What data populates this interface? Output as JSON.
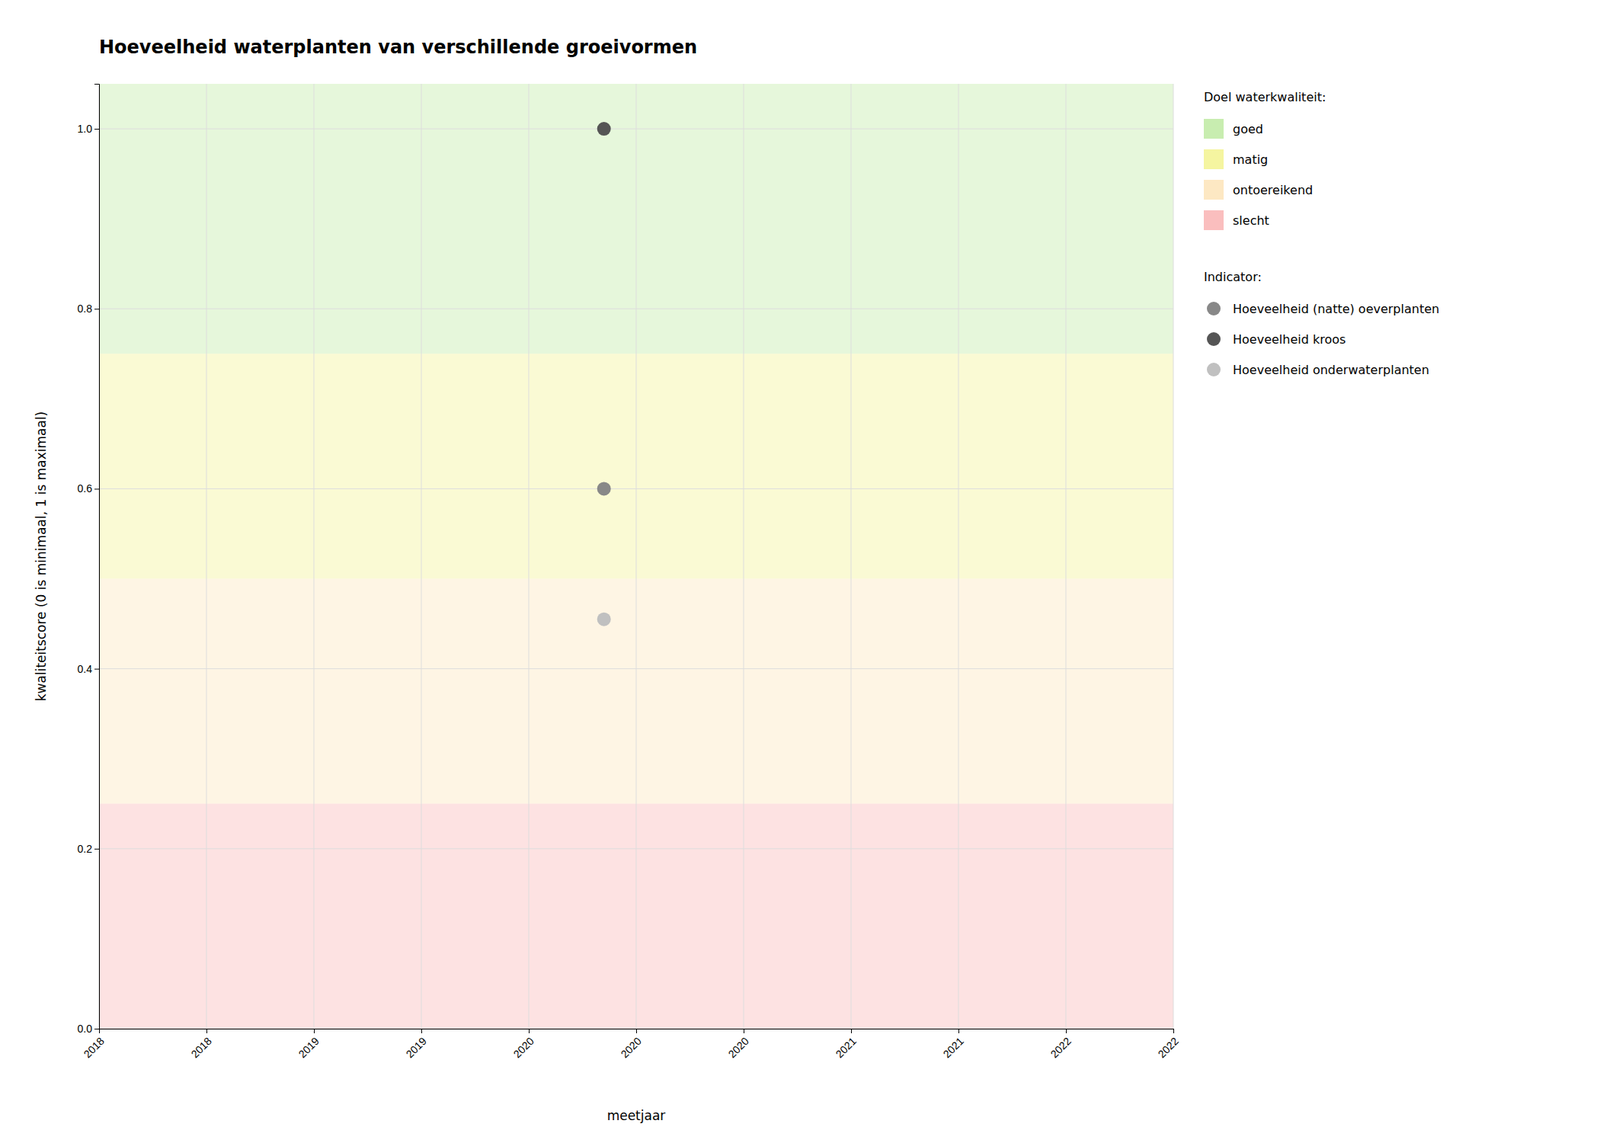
{
  "chart_data": {
    "type": "scatter",
    "title": "Hoeveelheid waterplanten van verschillende groeivormen",
    "x_label": "meetjaar",
    "y_label": "kwaliteitscore (0 is minimaal, 1 is maximaal)",
    "xlim": [
      2017.5,
      2022.5
    ],
    "ylim": [
      0.0,
      1.05
    ],
    "xticks": [
      {
        "value": 2017.5,
        "label": "2018"
      },
      {
        "value": 2018.0,
        "label": "2018"
      },
      {
        "value": 2018.5,
        "label": "2019"
      },
      {
        "value": 2019.0,
        "label": "2019"
      },
      {
        "value": 2019.5,
        "label": "2020"
      },
      {
        "value": 2020.0,
        "label": "2020"
      },
      {
        "value": 2020.5,
        "label": "2020"
      },
      {
        "value": 2021.0,
        "label": "2021"
      },
      {
        "value": 2021.5,
        "label": "2021"
      },
      {
        "value": 2022.0,
        "label": "2022"
      },
      {
        "value": 2022.5,
        "label": "2022"
      }
    ],
    "yticks": [
      {
        "value": 0,
        "label": "0.0"
      },
      0.2,
      0.4,
      0.6,
      0.8,
      {
        "value": 1,
        "label": "1.0"
      }
    ],
    "grid": true,
    "legend": "right",
    "legend_title": "Indicator:",
    "bands_title": "Doel waterkwaliteit:",
    "bands": [
      {
        "name": "goed",
        "from": 0.75,
        "to": 1.05,
        "color": "#c8edb0"
      },
      {
        "name": "matig",
        "from": 0.5,
        "to": 0.75,
        "color": "#f5f5a0"
      },
      {
        "name": "ontoereikend",
        "from": 0.25,
        "to": 0.5,
        "color": "#fde8c3"
      },
      {
        "name": "slecht",
        "from": 0.0,
        "to": 0.25,
        "color": "#fabebe"
      }
    ],
    "series": [
      {
        "name": "Hoeveelheid (natte) oeverplanten",
        "color": "#888888",
        "x": [
          2019.85
        ],
        "values": [
          0.6
        ]
      },
      {
        "name": "Hoeveelheid kroos",
        "color": "#555555",
        "x": [
          2019.85
        ],
        "values": [
          1.0
        ]
      },
      {
        "name": "Hoeveelheid onderwaterplanten",
        "color": "#c0c0c0",
        "x": [
          2019.85
        ],
        "values": [
          0.455
        ]
      }
    ]
  }
}
